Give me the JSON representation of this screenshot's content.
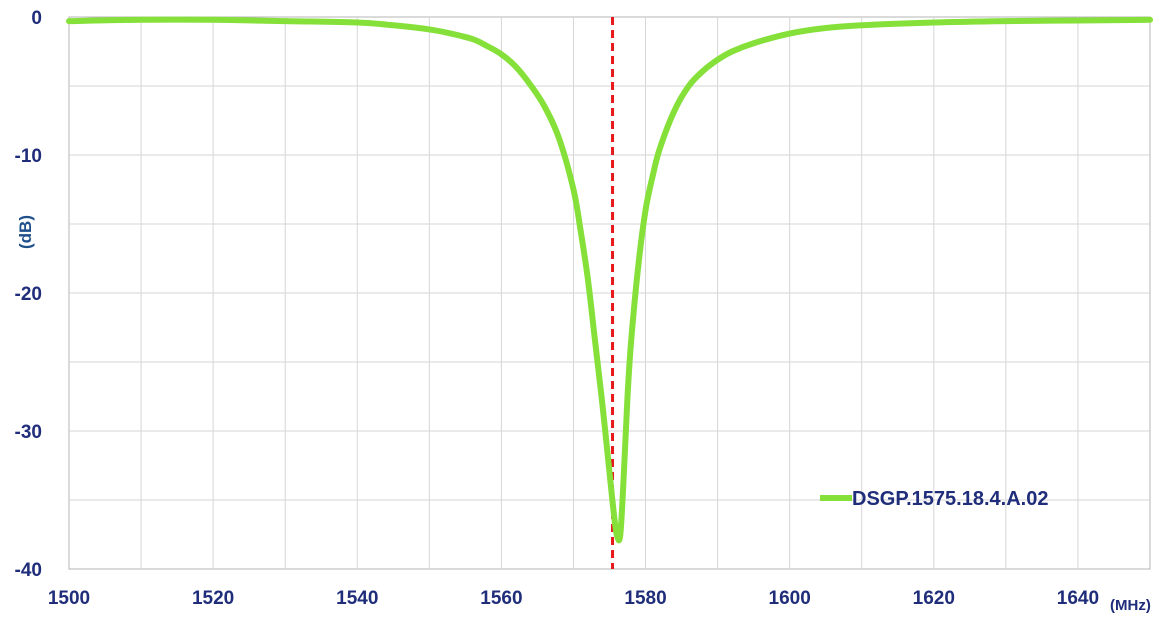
{
  "chart_data": {
    "type": "line",
    "xlabel": "(MHz)",
    "ylabel": "(dB)",
    "xlim": [
      1500,
      1650
    ],
    "ylim": [
      -40,
      0
    ],
    "x_ticks": [
      1500,
      1520,
      1540,
      1560,
      1580,
      1600,
      1620,
      1640
    ],
    "y_ticks": [
      0,
      -10,
      -20,
      -30,
      -40
    ],
    "grid": true,
    "legend_position": "bottom-right",
    "marker_line": {
      "x": 1575.42,
      "color": "#e8191b",
      "style": "dashed"
    },
    "series": [
      {
        "name": "DSGP.1575.18.4.A.02",
        "color": "#86e03a",
        "x": [
          1500,
          1510,
          1520,
          1530,
          1540,
          1545,
          1550,
          1553,
          1556,
          1558,
          1560,
          1562,
          1564,
          1566,
          1568,
          1570,
          1571,
          1572,
          1573,
          1574,
          1575,
          1575.5,
          1576,
          1576.5,
          1577,
          1577.5,
          1578,
          1579,
          1580,
          1581,
          1582,
          1584,
          1586,
          1588,
          1590,
          1592,
          1595,
          1600,
          1605,
          1610,
          1620,
          1630,
          1640,
          1650
        ],
        "y": [
          -0.3,
          -0.2,
          -0.2,
          -0.3,
          -0.4,
          -0.6,
          -0.9,
          -1.2,
          -1.6,
          -2.1,
          -2.7,
          -3.6,
          -4.9,
          -6.5,
          -8.8,
          -12.5,
          -15.5,
          -19.0,
          -23.5,
          -28.0,
          -33.0,
          -35.5,
          -37.5,
          -37.5,
          -33.0,
          -27.5,
          -23.5,
          -18.0,
          -14.0,
          -11.5,
          -9.5,
          -6.8,
          -5.0,
          -3.9,
          -3.1,
          -2.5,
          -1.9,
          -1.2,
          -0.8,
          -0.6,
          -0.4,
          -0.3,
          -0.25,
          -0.2
        ]
      }
    ]
  }
}
